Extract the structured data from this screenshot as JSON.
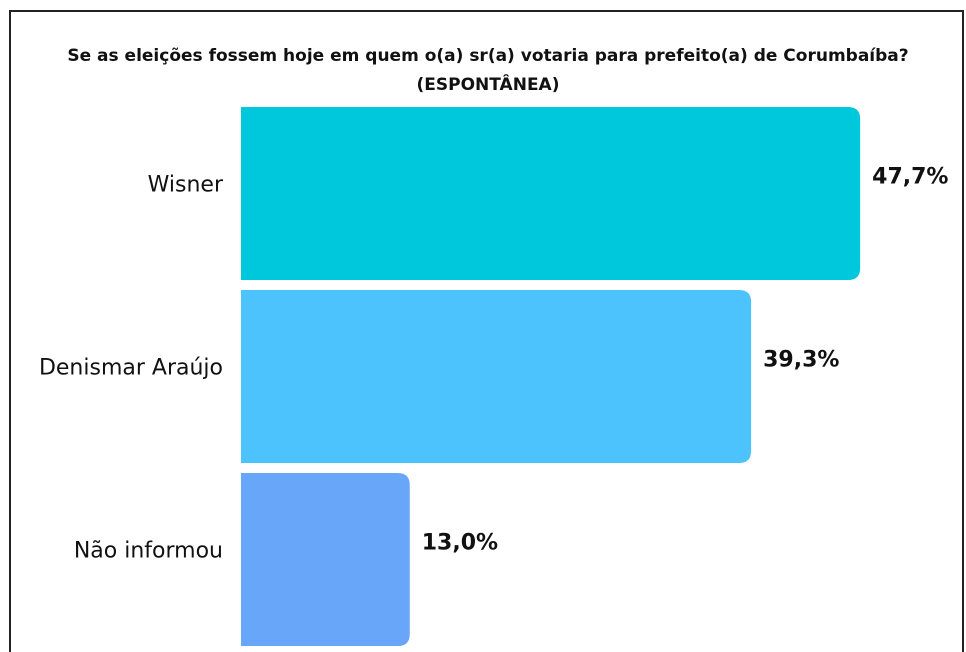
{
  "chart_data": {
    "type": "barh",
    "title": "Se as eleições fossem hoje em quem o(a) sr(a) votaria para prefeito(a) de Corumbaíba?",
    "subtitle": "(ESPONTÂNEA)",
    "categories": [
      "Wisner",
      "Denismar Araújo",
      "Não informou"
    ],
    "values": [
      47.7,
      39.3,
      13.0
    ],
    "value_labels": [
      "47,7%",
      "39,3%",
      "13,0%"
    ],
    "colors": [
      "#00c8dc",
      "#4cc3fc",
      "#67a6f8"
    ],
    "xlim": [
      0,
      50
    ]
  }
}
